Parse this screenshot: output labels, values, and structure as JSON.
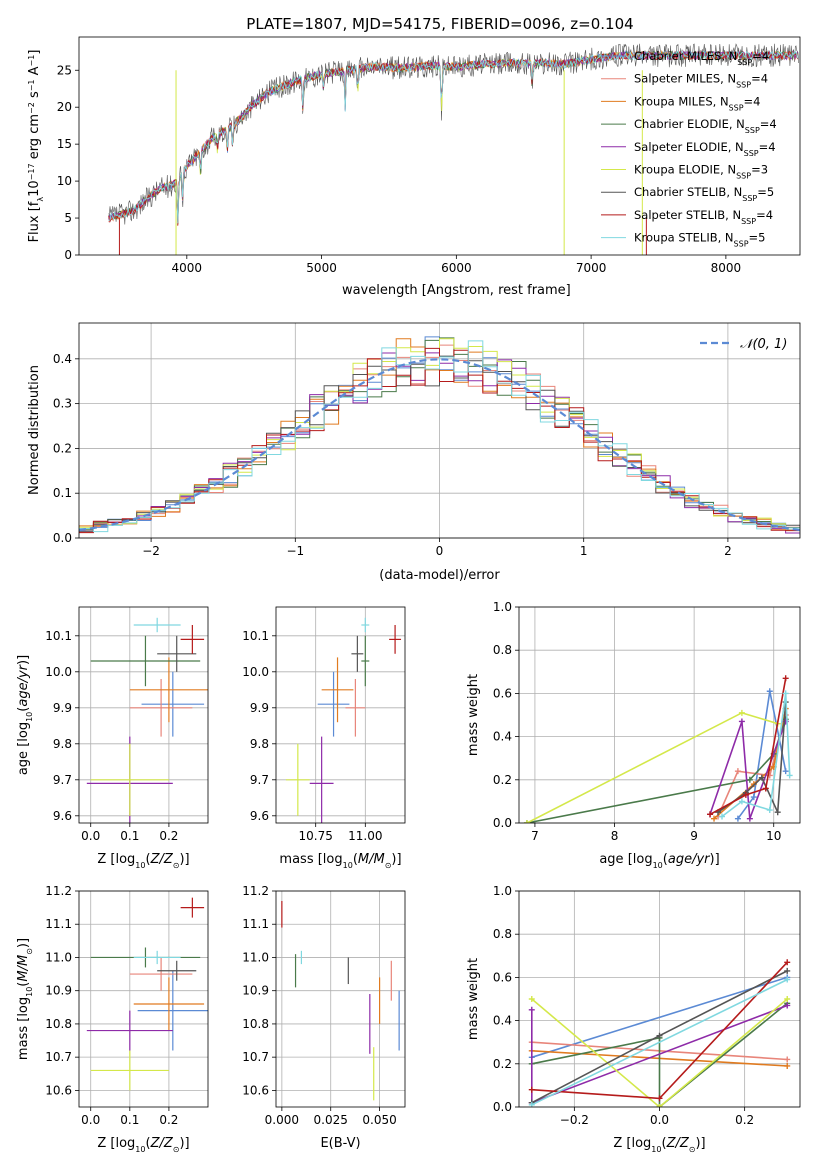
{
  "figure_title": "PLATE=1807, MJD=54175, FIBERID=0096, z=0.104",
  "colors": {
    "Chabrier MILES": "#5b8ad4",
    "Salpeter MILES": "#e8857a",
    "Kroupa MILES": "#e07b20",
    "Chabrier ELODIE": "#4a7a4a",
    "Salpeter ELODIE": "#8e2ba8",
    "Kroupa ELODIE": "#d4e84a",
    "Chabrier STELIB": "#555555",
    "Salpeter STELIB": "#b51b1b",
    "Kroupa STELIB": "#80d8e0"
  },
  "chart_data": [
    {
      "type": "line",
      "title": "PLATE=1807, MJD=54175, FIBERID=0096, z=0.104",
      "xlabel": "wavelength [Angstrom, rest frame]",
      "ylabel": "Flux [f_λ 10^-17 erg cm^-2 s^-1 A^-1]",
      "xlim": [
        3200,
        8550
      ],
      "ylim": [
        0,
        29.5
      ],
      "xticks": [
        4000,
        5000,
        6000,
        7000,
        8000
      ],
      "yticks": [
        0,
        5,
        10,
        15,
        20,
        25
      ],
      "legend_position": "right",
      "legend": [
        {
          "base": "Chabrier MILES, N",
          "sub": "SSP",
          "tail": "=4"
        },
        {
          "base": "Salpeter MILES, N",
          "sub": "SSP",
          "tail": "=4"
        },
        {
          "base": "Kroupa MILES, N",
          "sub": "SSP",
          "tail": "=4"
        },
        {
          "base": "Chabrier ELODIE, N",
          "sub": "SSP",
          "tail": "=4"
        },
        {
          "base": "Salpeter ELODIE, N",
          "sub": "SSP",
          "tail": "=4"
        },
        {
          "base": "Kroupa ELODIE, N",
          "sub": "SSP",
          "tail": "=3"
        },
        {
          "base": "Chabrier STELIB, N",
          "sub": "SSP",
          "tail": "=5"
        },
        {
          "base": "Salpeter STELIB, N",
          "sub": "SSP",
          "tail": "=4"
        },
        {
          "base": "Kroupa STELIB, N",
          "sub": "SSP",
          "tail": "=5"
        }
      ],
      "continuum": {
        "x": [
          3420,
          3600,
          3700,
          3800,
          3900,
          4000,
          4100,
          4200,
          4300,
          4400,
          4500,
          4600,
          4800,
          5000,
          5200,
          5400,
          5600,
          5800,
          6000,
          6200,
          6400,
          6600,
          6800,
          7000,
          7200,
          7400
        ],
        "y": [
          5,
          6,
          7.5,
          9,
          9.5,
          12,
          14,
          16,
          17,
          18.5,
          20.5,
          22,
          23.5,
          24.5,
          25,
          25.5,
          25.3,
          25.6,
          25.5,
          25.8,
          26,
          26,
          25.8,
          26.5,
          27,
          27
        ]
      },
      "cutoffs": [
        {
          "series": "Kroupa ELODIE",
          "x": 3920
        },
        {
          "series": "Kroupa ELODIE",
          "x": 6800
        },
        {
          "series": "Kroupa ELODIE",
          "x": 7380
        }
      ]
    },
    {
      "type": "area",
      "xlabel": "(data-model)/error",
      "ylabel": "Normed distribution",
      "xlim": [
        -2.5,
        2.5
      ],
      "ylim": [
        0,
        0.48
      ],
      "xticks": [
        -2,
        -1,
        0,
        1,
        2
      ],
      "yticks": [
        0.0,
        0.1,
        0.2,
        0.3,
        0.4
      ],
      "legend_label": "𝒩(0, 1)",
      "legend_position": "top-right",
      "bin_width": 0.1,
      "reference_curve": {
        "name": "𝒩(0, 1)",
        "mean": 0,
        "sigma": 1,
        "style": "dashed"
      }
    },
    {
      "type": "scatter",
      "xlabel": "Z [log10(Z/Z⊙)]",
      "ylabel": "age [log10(age/yr)]",
      "xlim": [
        -0.03,
        0.3
      ],
      "ylim": [
        9.58,
        10.18
      ],
      "xticks": [
        0.0,
        0.1,
        0.2
      ],
      "yticks": [
        9.6,
        9.7,
        9.8,
        9.9,
        10.0,
        10.1
      ],
      "points": [
        {
          "series": "Chabrier MILES",
          "x": 0.21,
          "y": 9.91,
          "xerr": 0.08,
          "yerr": 0.09
        },
        {
          "series": "Salpeter MILES",
          "x": 0.18,
          "y": 9.9,
          "xerr": 0.08,
          "yerr": 0.08
        },
        {
          "series": "Kroupa MILES",
          "x": 0.2,
          "y": 9.95,
          "xerr": 0.1,
          "yerr": 0.09
        },
        {
          "series": "Chabrier ELODIE",
          "x": 0.14,
          "y": 10.03,
          "xerr": 0.14,
          "yerr": 0.07
        },
        {
          "series": "Salpeter ELODIE",
          "x": 0.1,
          "y": 9.69,
          "xerr": 0.11,
          "yerr": 0.13
        },
        {
          "series": "Kroupa ELODIE",
          "x": 0.1,
          "y": 9.7,
          "xerr": 0.1,
          "yerr": 0.1
        },
        {
          "series": "Chabrier STELIB",
          "x": 0.22,
          "y": 10.05,
          "xerr": 0.05,
          "yerr": 0.05
        },
        {
          "series": "Salpeter STELIB",
          "x": 0.26,
          "y": 10.09,
          "xerr": 0.03,
          "yerr": 0.04
        },
        {
          "series": "Kroupa STELIB",
          "x": 0.17,
          "y": 10.13,
          "xerr": 0.06,
          "yerr": 0.02
        }
      ]
    },
    {
      "type": "scatter",
      "xlabel": "mass [log10(M/M⊙)]",
      "xlim": [
        10.55,
        11.2
      ],
      "ylim": [
        9.58,
        10.18
      ],
      "xticks": [
        10.75,
        11.0
      ],
      "yticks": [
        9.6,
        9.7,
        9.8,
        9.9,
        10.0,
        10.1
      ],
      "points": [
        {
          "series": "Chabrier MILES",
          "x": 10.84,
          "y": 9.91,
          "xerr": 0.08,
          "yerr": 0.09
        },
        {
          "series": "Salpeter MILES",
          "x": 10.95,
          "y": 9.9,
          "xerr": 0.05,
          "yerr": 0.08
        },
        {
          "series": "Kroupa MILES",
          "x": 10.86,
          "y": 9.95,
          "xerr": 0.08,
          "yerr": 0.09
        },
        {
          "series": "Chabrier ELODIE",
          "x": 11.0,
          "y": 10.03,
          "xerr": 0.02,
          "yerr": 0.07
        },
        {
          "series": "Salpeter ELODIE",
          "x": 10.78,
          "y": 9.69,
          "xerr": 0.06,
          "yerr": 0.13
        },
        {
          "series": "Kroupa ELODIE",
          "x": 10.66,
          "y": 9.7,
          "xerr": 0.06,
          "yerr": 0.1
        },
        {
          "series": "Chabrier STELIB",
          "x": 10.96,
          "y": 10.05,
          "xerr": 0.03,
          "yerr": 0.05
        },
        {
          "series": "Salpeter STELIB",
          "x": 11.15,
          "y": 10.09,
          "xerr": 0.03,
          "yerr": 0.04
        },
        {
          "series": "Kroupa STELIB",
          "x": 11.0,
          "y": 10.13,
          "xerr": 0.02,
          "yerr": 0.02
        }
      ]
    },
    {
      "type": "line",
      "xlabel": "age [log10(age/yr)]",
      "ylabel": "mass weight",
      "xlim": [
        6.8,
        10.33
      ],
      "ylim": [
        0,
        1.0
      ],
      "xticks": [
        7,
        8,
        9,
        10
      ],
      "yticks": [
        0.0,
        0.2,
        0.4,
        0.6,
        0.8,
        1.0
      ],
      "series": [
        {
          "name": "Chabrier MILES",
          "x": [
            9.55,
            9.75,
            9.95,
            10.15
          ],
          "y": [
            0.02,
            0.12,
            0.61,
            0.24
          ]
        },
        {
          "name": "Salpeter MILES",
          "x": [
            9.3,
            9.55,
            9.95,
            10.15
          ],
          "y": [
            0.03,
            0.24,
            0.22,
            0.5
          ]
        },
        {
          "name": "Kroupa MILES",
          "x": [
            9.25,
            9.75,
            10.0,
            10.15
          ],
          "y": [
            0.02,
            0.18,
            0.26,
            0.53
          ]
        },
        {
          "name": "Chabrier ELODIE",
          "x": [
            6.9,
            9.7,
            10.0,
            10.15
          ],
          "y": [
            0.0,
            0.2,
            0.32,
            0.48
          ]
        },
        {
          "name": "Salpeter ELODIE",
          "x": [
            9.2,
            9.6,
            9.7,
            10.15
          ],
          "y": [
            0.04,
            0.47,
            0.02,
            0.47
          ]
        },
        {
          "name": "Kroupa ELODIE",
          "x": [
            6.9,
            9.6,
            10.05
          ],
          "y": [
            0.0,
            0.51,
            0.46
          ]
        },
        {
          "name": "Chabrier STELIB",
          "x": [
            9.3,
            9.65,
            9.85,
            10.05,
            10.15
          ],
          "y": [
            0.05,
            0.14,
            0.21,
            0.05,
            0.56
          ]
        },
        {
          "name": "Salpeter STELIB",
          "x": [
            9.2,
            9.65,
            9.9,
            10.15
          ],
          "y": [
            0.04,
            0.13,
            0.16,
            0.67
          ]
        },
        {
          "name": "Kroupa STELIB",
          "x": [
            9.35,
            9.6,
            9.95,
            10.15,
            10.2
          ],
          "y": [
            0.03,
            0.1,
            0.06,
            0.6,
            0.22
          ]
        }
      ]
    },
    {
      "type": "scatter",
      "xlabel": "Z [log10(Z/Z⊙)]",
      "ylabel": "mass [log10(M/M⊙)]",
      "xlim": [
        -0.03,
        0.3
      ],
      "ylim": [
        10.55,
        11.2
      ],
      "xticks": [
        0.0,
        0.1,
        0.2
      ],
      "yticks": [
        10.6,
        10.7,
        10.8,
        10.9,
        11.0,
        11.1,
        11.2
      ],
      "points": [
        {
          "series": "Chabrier MILES",
          "x": 0.21,
          "y": 10.84,
          "xerr": 0.09,
          "yerr": 0.12
        },
        {
          "series": "Salpeter MILES",
          "x": 0.18,
          "y": 10.95,
          "xerr": 0.08,
          "yerr": 0.05
        },
        {
          "series": "Kroupa MILES",
          "x": 0.2,
          "y": 10.86,
          "xerr": 0.09,
          "yerr": 0.08
        },
        {
          "series": "Chabrier ELODIE",
          "x": 0.14,
          "y": 11.0,
          "xerr": 0.14,
          "yerr": 0.03
        },
        {
          "series": "Salpeter ELODIE",
          "x": 0.1,
          "y": 10.78,
          "xerr": 0.11,
          "yerr": 0.06
        },
        {
          "series": "Kroupa ELODIE",
          "x": 0.1,
          "y": 10.66,
          "xerr": 0.1,
          "yerr": 0.06
        },
        {
          "series": "Chabrier STELIB",
          "x": 0.22,
          "y": 10.96,
          "xerr": 0.05,
          "yerr": 0.03
        },
        {
          "series": "Salpeter STELIB",
          "x": 0.26,
          "y": 11.15,
          "xerr": 0.03,
          "yerr": 0.03
        },
        {
          "series": "Kroupa STELIB",
          "x": 0.17,
          "y": 11.0,
          "xerr": 0.06,
          "yerr": 0.02
        }
      ]
    },
    {
      "type": "scatter",
      "xlabel": "E(B-V)",
      "xlim": [
        -0.003,
        0.063
      ],
      "ylim": [
        10.55,
        11.2
      ],
      "xticks": [
        0.0,
        0.025,
        0.05
      ],
      "yticks": [
        10.6,
        10.7,
        10.8,
        10.9,
        11.0,
        11.1,
        11.2
      ],
      "points": [
        {
          "series": "Chabrier MILES",
          "x": 0.06,
          "y": 10.81,
          "yerr": 0.09
        },
        {
          "series": "Salpeter MILES",
          "x": 0.056,
          "y": 10.93,
          "yerr": 0.06
        },
        {
          "series": "Kroupa MILES",
          "x": 0.05,
          "y": 10.87,
          "yerr": 0.07
        },
        {
          "series": "Chabrier ELODIE",
          "x": 0.007,
          "y": 10.96,
          "yerr": 0.05
        },
        {
          "series": "Salpeter ELODIE",
          "x": 0.045,
          "y": 10.8,
          "yerr": 0.09
        },
        {
          "series": "Kroupa ELODIE",
          "x": 0.047,
          "y": 10.65,
          "yerr": 0.08
        },
        {
          "series": "Chabrier STELIB",
          "x": 0.034,
          "y": 10.96,
          "yerr": 0.04
        },
        {
          "series": "Salpeter STELIB",
          "x": 0.0,
          "y": 11.13,
          "yerr": 0.04
        },
        {
          "series": "Kroupa STELIB",
          "x": 0.01,
          "y": 11.0,
          "yerr": 0.02
        }
      ]
    },
    {
      "type": "line",
      "xlabel": "Z [log10(Z/Z⊙)]",
      "ylabel": "mass weight",
      "xlim": [
        -0.33,
        0.33
      ],
      "ylim": [
        0,
        1.0
      ],
      "xticks": [
        -0.2,
        0.0,
        0.2
      ],
      "yticks": [
        0.0,
        0.2,
        0.4,
        0.6,
        0.8,
        1.0
      ],
      "series": [
        {
          "name": "Chabrier MILES",
          "x": [
            -0.3,
            0.3
          ],
          "y": [
            0.23,
            0.6
          ]
        },
        {
          "name": "Salpeter MILES",
          "x": [
            -0.3,
            0.3
          ],
          "y": [
            0.3,
            0.22
          ]
        },
        {
          "name": "Kroupa MILES",
          "x": [
            -0.3,
            0.3
          ],
          "y": [
            0.26,
            0.19
          ]
        },
        {
          "name": "Chabrier ELODIE",
          "x": [
            -0.3,
            0.0,
            0.0,
            0.3
          ],
          "y": [
            0.2,
            0.32,
            0.0,
            0.48
          ]
        },
        {
          "name": "Salpeter ELODIE",
          "x": [
            -0.3,
            -0.3,
            0.3
          ],
          "y": [
            0.45,
            0.02,
            0.47
          ]
        },
        {
          "name": "Kroupa ELODIE",
          "x": [
            -0.3,
            0.0,
            0.3
          ],
          "y": [
            0.5,
            0.0,
            0.5
          ]
        },
        {
          "name": "Chabrier STELIB",
          "x": [
            -0.3,
            0.0,
            0.3
          ],
          "y": [
            0.02,
            0.33,
            0.63
          ]
        },
        {
          "name": "Salpeter STELIB",
          "x": [
            -0.3,
            0.0,
            0.3
          ],
          "y": [
            0.08,
            0.04,
            0.67
          ]
        },
        {
          "name": "Kroupa STELIB",
          "x": [
            -0.3,
            0.3
          ],
          "y": [
            0.01,
            0.59
          ]
        }
      ]
    }
  ]
}
